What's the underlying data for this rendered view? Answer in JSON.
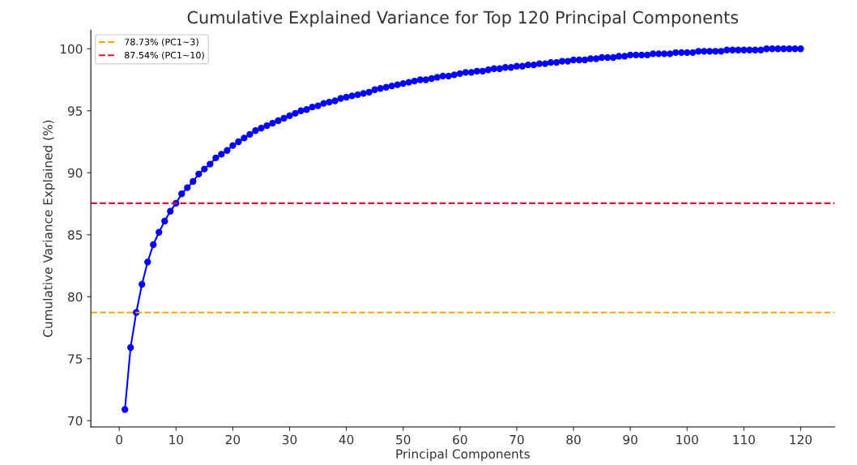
{
  "chart_data": {
    "type": "line",
    "title": "Cumulative Explained Variance for Top 120 Principal Components",
    "xlabel": "Principal Components",
    "ylabel": "Cumulative Variance Explained (%)",
    "x": [
      1,
      2,
      3,
      4,
      5,
      6,
      7,
      8,
      9,
      10,
      11,
      12,
      13,
      14,
      15,
      16,
      17,
      18,
      19,
      20,
      21,
      22,
      23,
      24,
      25,
      26,
      27,
      28,
      29,
      30,
      31,
      32,
      33,
      34,
      35,
      36,
      37,
      38,
      39,
      40,
      41,
      42,
      43,
      44,
      45,
      46,
      47,
      48,
      49,
      50,
      51,
      52,
      53,
      54,
      55,
      56,
      57,
      58,
      59,
      60,
      61,
      62,
      63,
      64,
      65,
      66,
      67,
      68,
      69,
      70,
      71,
      72,
      73,
      74,
      75,
      76,
      77,
      78,
      79,
      80,
      81,
      82,
      83,
      84,
      85,
      86,
      87,
      88,
      89,
      90,
      91,
      92,
      93,
      94,
      95,
      96,
      97,
      98,
      99,
      100,
      101,
      102,
      103,
      104,
      105,
      106,
      107,
      108,
      109,
      110,
      111,
      112,
      113,
      114,
      115,
      116,
      117,
      118,
      119,
      120
    ],
    "series": [
      {
        "color": "#0000ff",
        "values": [
          70.9,
          75.9,
          78.73,
          81.0,
          82.8,
          84.2,
          85.2,
          86.1,
          86.9,
          87.54,
          88.3,
          88.8,
          89.3,
          89.9,
          90.3,
          90.7,
          91.2,
          91.5,
          91.8,
          92.2,
          92.5,
          92.8,
          93.1,
          93.4,
          93.6,
          93.8,
          94.0,
          94.2,
          94.4,
          94.6,
          94.8,
          95.0,
          95.1,
          95.3,
          95.4,
          95.6,
          95.7,
          95.8,
          96.0,
          96.1,
          96.2,
          96.3,
          96.4,
          96.5,
          96.7,
          96.8,
          96.9,
          97.0,
          97.1,
          97.2,
          97.3,
          97.4,
          97.5,
          97.5,
          97.6,
          97.7,
          97.8,
          97.8,
          97.9,
          98.0,
          98.1,
          98.1,
          98.2,
          98.2,
          98.3,
          98.4,
          98.4,
          98.5,
          98.5,
          98.6,
          98.6,
          98.7,
          98.7,
          98.8,
          98.8,
          98.9,
          98.9,
          99.0,
          99.0,
          99.1,
          99.1,
          99.1,
          99.2,
          99.2,
          99.3,
          99.3,
          99.3,
          99.4,
          99.4,
          99.5,
          99.5,
          99.5,
          99.5,
          99.6,
          99.6,
          99.6,
          99.6,
          99.7,
          99.7,
          99.7,
          99.7,
          99.8,
          99.8,
          99.8,
          99.8,
          99.8,
          99.9,
          99.9,
          99.9,
          99.9,
          99.9,
          99.9,
          99.9,
          100.0,
          100.0,
          100.0,
          100.0,
          100.0,
          100.0,
          100.0
        ]
      }
    ],
    "marker": "circle",
    "line_style": "solid",
    "xlim": [
      -5,
      126
    ],
    "xticks": [
      0,
      10,
      20,
      30,
      40,
      50,
      60,
      70,
      80,
      90,
      100,
      110,
      120
    ],
    "ylim": [
      69.5,
      101.5
    ],
    "yticks": [
      70,
      75,
      80,
      85,
      90,
      95,
      100
    ],
    "ref_lines": [
      {
        "axis": "y",
        "value": 78.73,
        "label": "78.73% (PC1~3)",
        "color": "#ffa500",
        "line_style": "dashed"
      },
      {
        "axis": "y",
        "value": 87.54,
        "label": "87.54% (PC1~10)",
        "color": "#dc143c",
        "line_style": "dashed"
      }
    ],
    "grid": false,
    "legend": "top left"
  }
}
